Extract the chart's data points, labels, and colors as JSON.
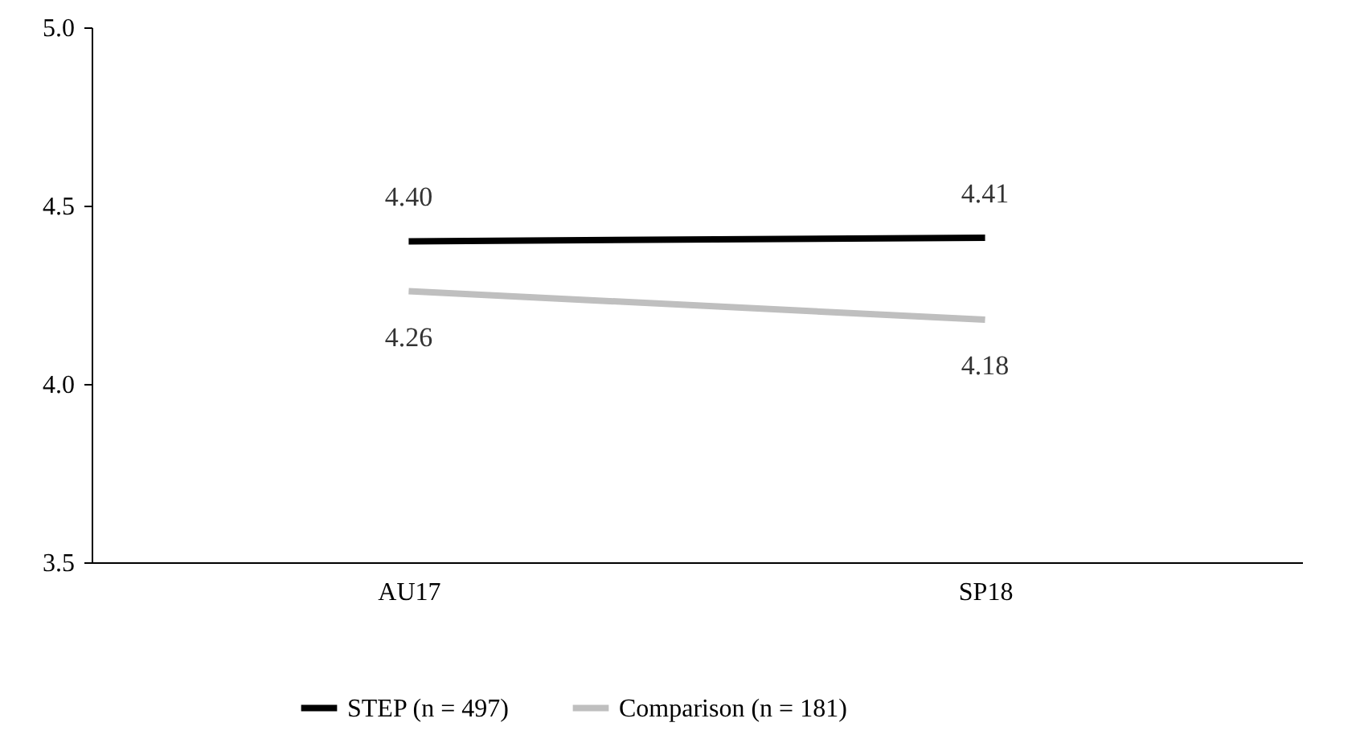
{
  "chart_data": {
    "type": "line",
    "categories": [
      "AU17",
      "SP18"
    ],
    "series": [
      {
        "name": "STEP (n = 497)",
        "color": "#000000",
        "values": [
          4.4,
          4.41
        ],
        "value_labels": [
          "4.40",
          "4.41"
        ]
      },
      {
        "name": "Comparison (n = 181)",
        "color": "#bfbfbf",
        "values": [
          4.26,
          4.18
        ],
        "value_labels": [
          "4.26",
          "4.18"
        ]
      }
    ],
    "ylim": [
      3.5,
      5.0
    ],
    "yticks": [
      {
        "value": 3.5,
        "label": "3.5"
      },
      {
        "value": 4.0,
        "label": "4.0"
      },
      {
        "value": 4.5,
        "label": "4.5"
      },
      {
        "value": 5.0,
        "label": "5.0"
      }
    ],
    "legend": "bottom",
    "grid": false,
    "marker": "none",
    "line_style": "solid"
  }
}
